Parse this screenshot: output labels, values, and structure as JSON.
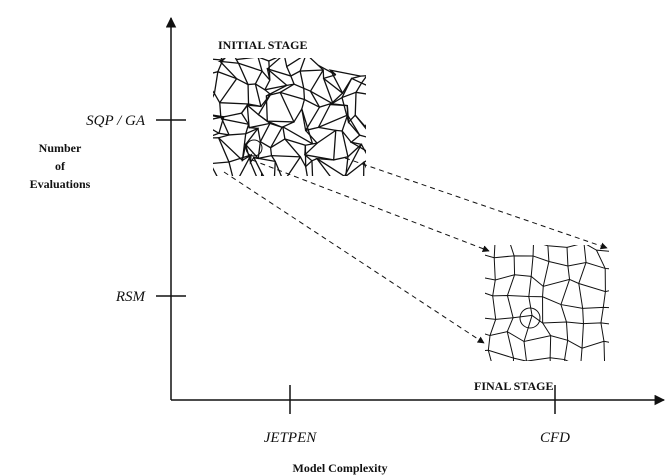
{
  "y_axis_label": [
    "Number",
    "of",
    "Evaluations"
  ],
  "x_axis_label": "Model Complexity",
  "y_ticks": [
    "SQP / GA",
    "RSM"
  ],
  "x_ticks": [
    "JETPEN",
    "CFD"
  ],
  "stages": {
    "initial": "INITIAL STAGE",
    "final": "FINAL STAGE"
  }
}
